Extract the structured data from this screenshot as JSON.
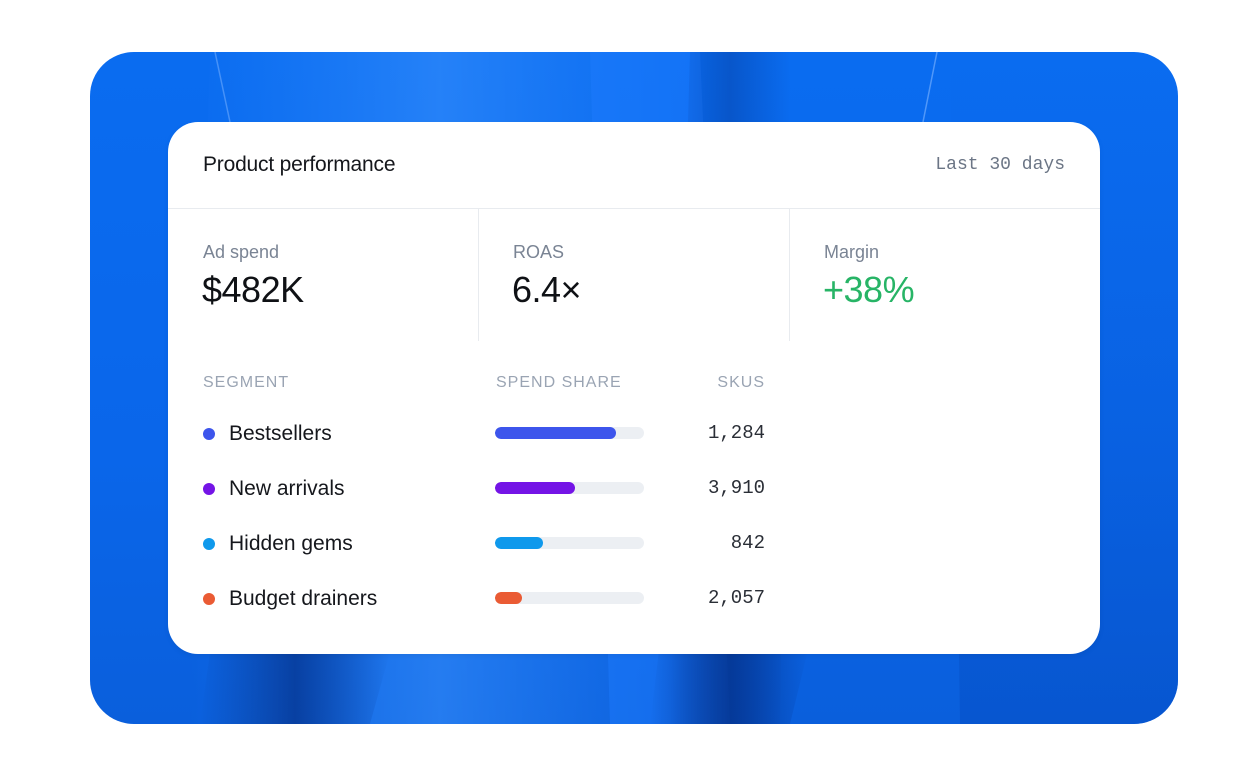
{
  "card": {
    "title": "Product performance",
    "range": "Last 30 days"
  },
  "kpis": [
    {
      "label": "Ad spend",
      "value": "$482K"
    },
    {
      "label": "ROAS",
      "value": "6.4×"
    },
    {
      "label": "Margin",
      "value": "+38%",
      "color": "#27b466"
    }
  ],
  "table": {
    "headers": {
      "segment": "SEGMENT",
      "share": "SPEND SHARE",
      "skus": "SKUS"
    },
    "rows": [
      {
        "name": "Bestsellers",
        "color": "#3d55ec",
        "share": 0.81,
        "skus": "1,284"
      },
      {
        "name": "New arrivals",
        "color": "#7414e6",
        "share": 0.54,
        "skus": "3,910"
      },
      {
        "name": "Hidden gems",
        "color": "#0f99ec",
        "share": 0.32,
        "skus": "842"
      },
      {
        "name": "Budget drainers",
        "color": "#ea5b34",
        "share": 0.18,
        "skus": "2,057"
      }
    ]
  },
  "colors": {
    "background_blue": "#0a6cf0",
    "positive": "#27b466",
    "track": "#eceff3"
  }
}
